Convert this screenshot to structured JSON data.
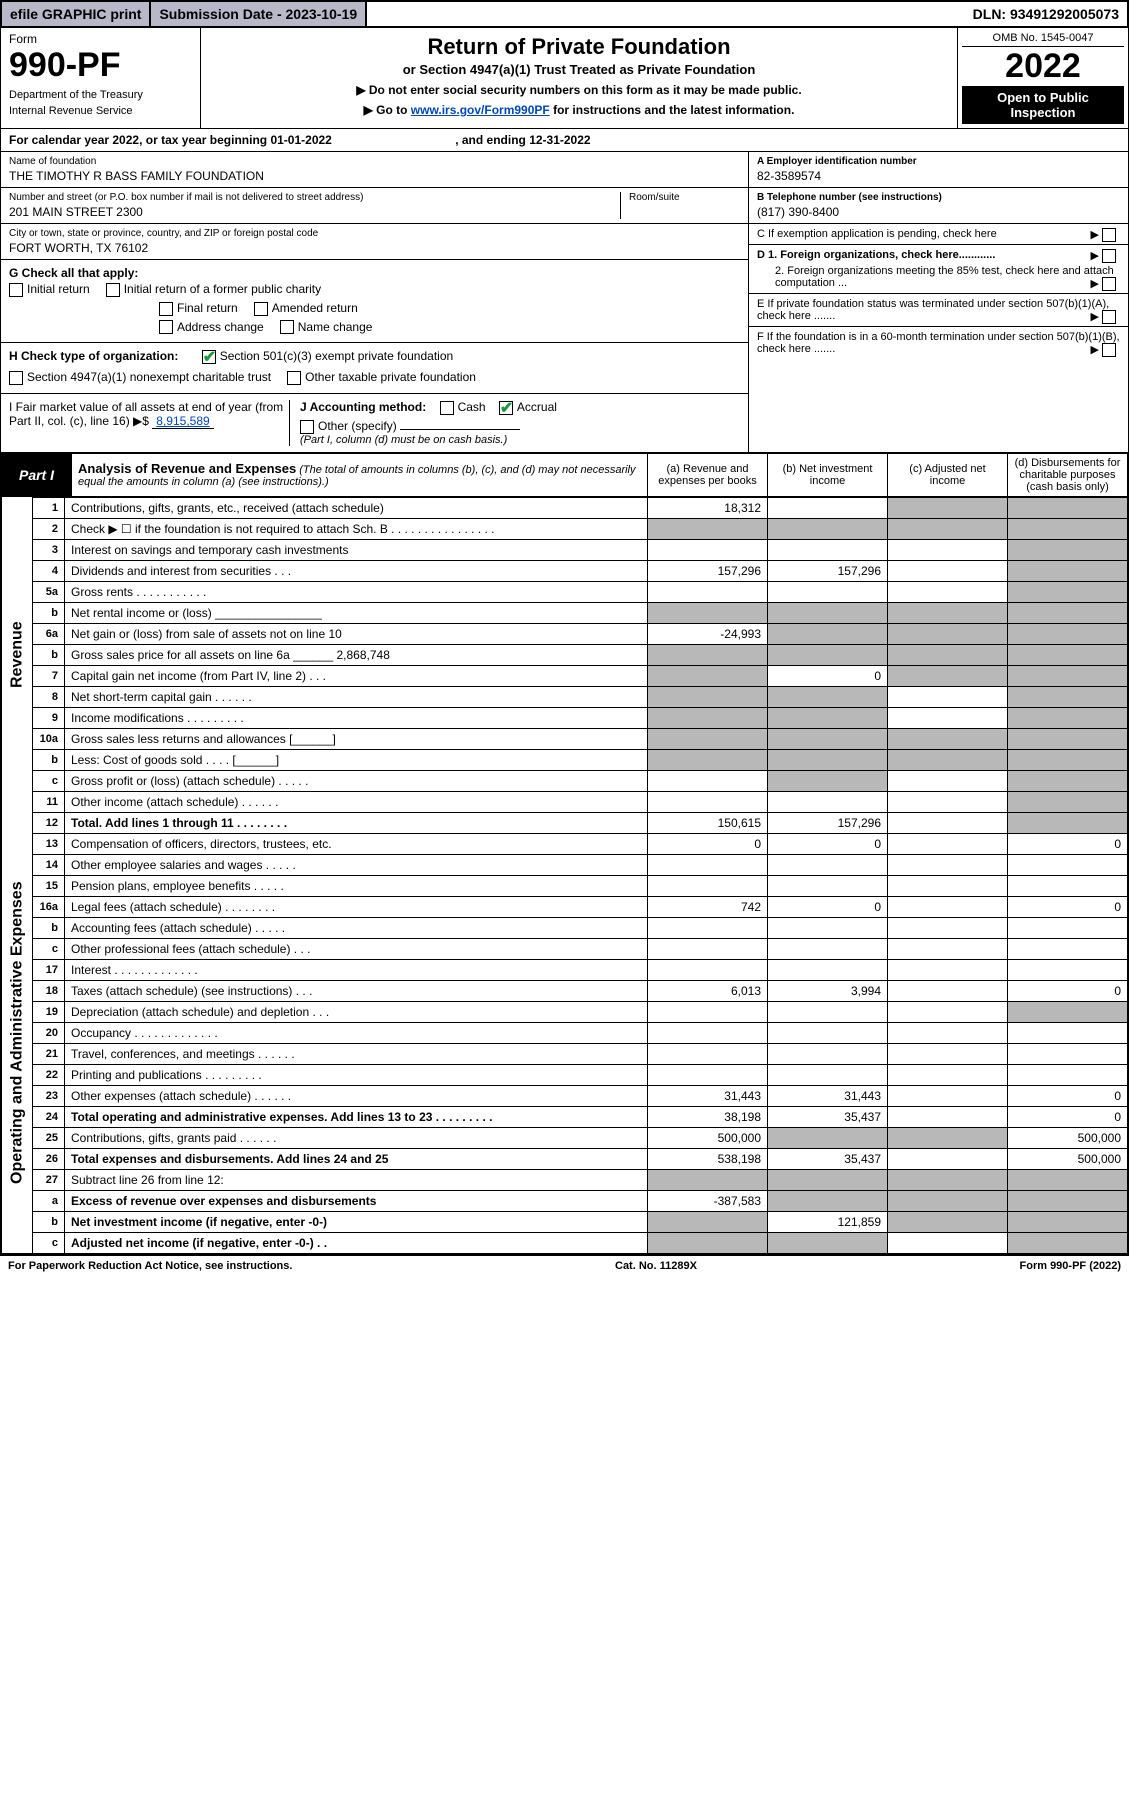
{
  "topbar": {
    "efile": "efile GRAPHIC print",
    "submission_label": "Submission Date - ",
    "submission_date": "2023-10-19",
    "dln_label": "DLN: ",
    "dln": "93491292005073"
  },
  "header": {
    "form_word": "Form",
    "form_number": "990-PF",
    "dept": "Department of the Treasury",
    "irs": "Internal Revenue Service",
    "title": "Return of Private Foundation",
    "subtitle": "or Section 4947(a)(1) Trust Treated as Private Foundation",
    "note1": "▶ Do not enter social security numbers on this form as it may be made public.",
    "note2_pre": "▶ Go to ",
    "note2_link": "www.irs.gov/Form990PF",
    "note2_post": " for instructions and the latest information.",
    "omb": "OMB No. 1545-0047",
    "year": "2022",
    "open": "Open to Public Inspection"
  },
  "calendar_line": {
    "pre": "For calendar year 2022, or tax year beginning ",
    "begin": "01-01-2022",
    "mid": " , and ending ",
    "end": "12-31-2022"
  },
  "entity": {
    "name_label": "Name of foundation",
    "name": "THE TIMOTHY R BASS FAMILY FOUNDATION",
    "addr_label": "Number and street (or P.O. box number if mail is not delivered to street address)",
    "room_label": "Room/suite",
    "addr": "201 MAIN STREET 2300",
    "city_label": "City or town, state or province, country, and ZIP or foreign postal code",
    "city": "FORT WORTH, TX  76102",
    "ein_label": "A Employer identification number",
    "ein": "82-3589574",
    "phone_label": "B Telephone number (see instructions)",
    "phone": "(817) 390-8400",
    "c_label": "C If exemption application is pending, check here",
    "d1": "D 1. Foreign organizations, check here............",
    "d2": "2. Foreign organizations meeting the 85% test, check here and attach computation ...",
    "e_label": "E  If private foundation status was terminated under section 507(b)(1)(A), check here .......",
    "f_label": "F  If the foundation is in a 60-month termination under section 507(b)(1)(B), check here .......",
    "g_label": "G Check all that apply:",
    "g_opts": [
      "Initial return",
      "Initial return of a former public charity",
      "Final return",
      "Amended return",
      "Address change",
      "Name change"
    ],
    "h_label": "H Check type of organization:",
    "h_501c3": "Section 501(c)(3) exempt private foundation",
    "h_4947": "Section 4947(a)(1) nonexempt charitable trust",
    "h_other": "Other taxable private foundation",
    "i_label": "I Fair market value of all assets at end of year (from Part II, col. (c), line 16) ▶$",
    "i_val": "8,915,589",
    "j_label": "J Accounting method:",
    "j_cash": "Cash",
    "j_accrual": "Accrual",
    "j_other": "Other (specify)",
    "j_note": "(Part I, column (d) must be on cash basis.)"
  },
  "part1": {
    "label": "Part I",
    "title": "Analysis of Revenue and Expenses",
    "note": " (The total of amounts in columns (b), (c), and (d) may not necessarily equal the amounts in column (a) (see instructions).)",
    "col_a": "(a)  Revenue and expenses per books",
    "col_b": "(b)  Net investment income",
    "col_c": "(c)  Adjusted net income",
    "col_d": "(d)  Disbursements for charitable purposes (cash basis only)"
  },
  "rows": [
    {
      "n": "1",
      "label": "Contributions, gifts, grants, etc., received (attach schedule)",
      "a": "18,312",
      "b": "",
      "c": "",
      "d": "",
      "grey": [
        "c",
        "d"
      ]
    },
    {
      "n": "2",
      "label": "Check ▶ ☐ if the foundation is not required to attach Sch. B   .  .  .  .  .  .  .  .  .  .  .  .  .  .  .  .",
      "a": "",
      "b": "",
      "c": "",
      "d": "",
      "grey": [
        "a",
        "b",
        "c",
        "d"
      ]
    },
    {
      "n": "3",
      "label": "Interest on savings and temporary cash investments",
      "a": "",
      "b": "",
      "c": "",
      "d": "",
      "grey": [
        "d"
      ]
    },
    {
      "n": "4",
      "label": "Dividends and interest from securities   .   .   .",
      "a": "157,296",
      "b": "157,296",
      "c": "",
      "d": "",
      "grey": [
        "d"
      ]
    },
    {
      "n": "5a",
      "label": "Gross rents   .   .   .   .   .   .   .   .   .   .   .",
      "a": "",
      "b": "",
      "c": "",
      "d": "",
      "grey": [
        "d"
      ]
    },
    {
      "n": "b",
      "label": "Net rental income or (loss)   ________________",
      "a": "",
      "b": "",
      "c": "",
      "d": "",
      "grey": [
        "a",
        "b",
        "c",
        "d"
      ]
    },
    {
      "n": "6a",
      "label": "Net gain or (loss) from sale of assets not on line 10",
      "a": "-24,993",
      "b": "",
      "c": "",
      "d": "",
      "grey": [
        "b",
        "c",
        "d"
      ]
    },
    {
      "n": "b",
      "label": "Gross sales price for all assets on line 6a ______ 2,868,748",
      "a": "",
      "b": "",
      "c": "",
      "d": "",
      "grey": [
        "a",
        "b",
        "c",
        "d"
      ]
    },
    {
      "n": "7",
      "label": "Capital gain net income (from Part IV, line 2)   .   .   .",
      "a": "",
      "b": "0",
      "c": "",
      "d": "",
      "grey": [
        "a",
        "c",
        "d"
      ]
    },
    {
      "n": "8",
      "label": "Net short-term capital gain   .   .   .   .   .   .",
      "a": "",
      "b": "",
      "c": "",
      "d": "",
      "grey": [
        "a",
        "b",
        "d"
      ]
    },
    {
      "n": "9",
      "label": "Income modifications .   .   .   .   .   .   .   .   .",
      "a": "",
      "b": "",
      "c": "",
      "d": "",
      "grey": [
        "a",
        "b",
        "d"
      ]
    },
    {
      "n": "10a",
      "label": "Gross sales less returns and allowances  [______]",
      "a": "",
      "b": "",
      "c": "",
      "d": "",
      "grey": [
        "a",
        "b",
        "c",
        "d"
      ]
    },
    {
      "n": "b",
      "label": "Less: Cost of goods sold   .   .   .   .   [______]",
      "a": "",
      "b": "",
      "c": "",
      "d": "",
      "grey": [
        "a",
        "b",
        "c",
        "d"
      ]
    },
    {
      "n": "c",
      "label": "Gross profit or (loss) (attach schedule)   .   .   .   .   .",
      "a": "",
      "b": "",
      "c": "",
      "d": "",
      "grey": [
        "b",
        "d"
      ]
    },
    {
      "n": "11",
      "label": "Other income (attach schedule)   .   .   .   .   .   .",
      "a": "",
      "b": "",
      "c": "",
      "d": "",
      "grey": [
        "d"
      ]
    },
    {
      "n": "12",
      "label": "Total. Add lines 1 through 11   .   .   .   .   .   .   .   .",
      "a": "150,615",
      "b": "157,296",
      "c": "",
      "d": "",
      "bold": true,
      "grey": [
        "d"
      ]
    },
    {
      "n": "13",
      "label": "Compensation of officers, directors, trustees, etc.",
      "a": "0",
      "b": "0",
      "c": "",
      "d": "0"
    },
    {
      "n": "14",
      "label": "Other employee salaries and wages   .   .   .   .   .",
      "a": "",
      "b": "",
      "c": "",
      "d": ""
    },
    {
      "n": "15",
      "label": "Pension plans, employee benefits   .   .   .   .   .",
      "a": "",
      "b": "",
      "c": "",
      "d": ""
    },
    {
      "n": "16a",
      "label": "Legal fees (attach schedule) .   .   .   .   .   .   .   .",
      "a": "742",
      "b": "0",
      "c": "",
      "d": "0"
    },
    {
      "n": "b",
      "label": "Accounting fees (attach schedule)   .   .   .   .   .",
      "a": "",
      "b": "",
      "c": "",
      "d": ""
    },
    {
      "n": "c",
      "label": "Other professional fees (attach schedule)   .   .   .",
      "a": "",
      "b": "",
      "c": "",
      "d": ""
    },
    {
      "n": "17",
      "label": "Interest  .   .   .   .   .   .   .   .   .   .   .   .   .",
      "a": "",
      "b": "",
      "c": "",
      "d": ""
    },
    {
      "n": "18",
      "label": "Taxes (attach schedule) (see instructions)   .   .   .",
      "a": "6,013",
      "b": "3,994",
      "c": "",
      "d": "0"
    },
    {
      "n": "19",
      "label": "Depreciation (attach schedule) and depletion   .   .   .",
      "a": "",
      "b": "",
      "c": "",
      "d": "",
      "grey": [
        "d"
      ]
    },
    {
      "n": "20",
      "label": "Occupancy .   .   .   .   .   .   .   .   .   .   .   .   .",
      "a": "",
      "b": "",
      "c": "",
      "d": ""
    },
    {
      "n": "21",
      "label": "Travel, conferences, and meetings .   .   .   .   .   .",
      "a": "",
      "b": "",
      "c": "",
      "d": ""
    },
    {
      "n": "22",
      "label": "Printing and publications .   .   .   .   .   .   .   .   .",
      "a": "",
      "b": "",
      "c": "",
      "d": ""
    },
    {
      "n": "23",
      "label": "Other expenses (attach schedule) .   .   .   .   .   .",
      "a": "31,443",
      "b": "31,443",
      "c": "",
      "d": "0"
    },
    {
      "n": "24",
      "label": "Total operating and administrative expenses. Add lines 13 to 23   .   .   .   .   .   .   .   .   .",
      "a": "38,198",
      "b": "35,437",
      "c": "",
      "d": "0",
      "bold": true
    },
    {
      "n": "25",
      "label": "Contributions, gifts, grants paid   .   .   .   .   .   .",
      "a": "500,000",
      "b": "",
      "c": "",
      "d": "500,000",
      "grey": [
        "b",
        "c"
      ]
    },
    {
      "n": "26",
      "label": "Total expenses and disbursements. Add lines 24 and 25",
      "a": "538,198",
      "b": "35,437",
      "c": "",
      "d": "500,000",
      "bold": true
    },
    {
      "n": "27",
      "label": "Subtract line 26 from line 12:",
      "a": "",
      "b": "",
      "c": "",
      "d": "",
      "grey": [
        "a",
        "b",
        "c",
        "d"
      ]
    },
    {
      "n": "a",
      "label": "Excess of revenue over expenses and disbursements",
      "a": "-387,583",
      "b": "",
      "c": "",
      "d": "",
      "bold": true,
      "grey": [
        "b",
        "c",
        "d"
      ]
    },
    {
      "n": "b",
      "label": "Net investment income (if negative, enter -0-)",
      "a": "",
      "b": "121,859",
      "c": "",
      "d": "",
      "bold": true,
      "grey": [
        "a",
        "c",
        "d"
      ]
    },
    {
      "n": "c",
      "label": "Adjusted net income (if negative, enter -0-)   .   .",
      "a": "",
      "b": "",
      "c": "",
      "d": "",
      "bold": true,
      "grey": [
        "a",
        "b",
        "d"
      ]
    }
  ],
  "vlabels": {
    "revenue": "Revenue",
    "expenses": "Operating and Administrative Expenses"
  },
  "footer": {
    "left": "For Paperwork Reduction Act Notice, see instructions.",
    "mid": "Cat. No. 11289X",
    "right": "Form 990-PF (2022)"
  },
  "colors": {
    "topbar_bg": "#b8b8c8",
    "grey_cell": "#b8b8b8",
    "link": "#0047bb",
    "check_green": "#1a9b3a"
  }
}
